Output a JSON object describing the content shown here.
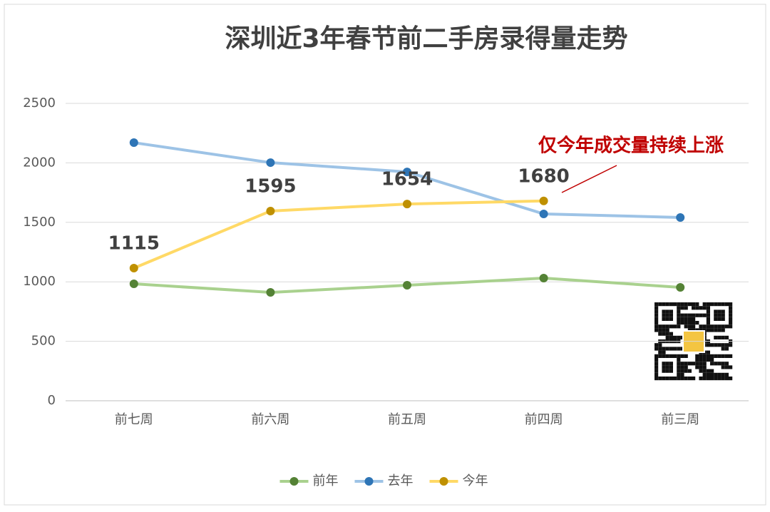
{
  "chart_data": {
    "type": "line",
    "title": "深圳近3年春节前二手房录得量走势",
    "annotation": "仅今年成交量持续上涨",
    "categories": [
      "前七周",
      "前六周",
      "前五周",
      "前四周",
      "前三周"
    ],
    "series": [
      {
        "name": "前年",
        "color": "#a9d18e",
        "marker_color": "#548235",
        "values": [
          983,
          911,
          971,
          1031,
          953
        ]
      },
      {
        "name": "去年",
        "color": "#9dc3e6",
        "marker_color": "#2e75b6",
        "values": [
          2170,
          2002,
          1924,
          1571,
          1541
        ]
      },
      {
        "name": "今年",
        "color": "#ffd966",
        "marker_color": "#bf9000",
        "values": [
          1115,
          1595,
          1654,
          1680,
          null
        ],
        "data_labels": true
      }
    ],
    "ylim": [
      0,
      2500
    ],
    "yticks": [
      0,
      500,
      1000,
      1500,
      2000,
      2500
    ],
    "grid": true,
    "legend": "bottom"
  }
}
